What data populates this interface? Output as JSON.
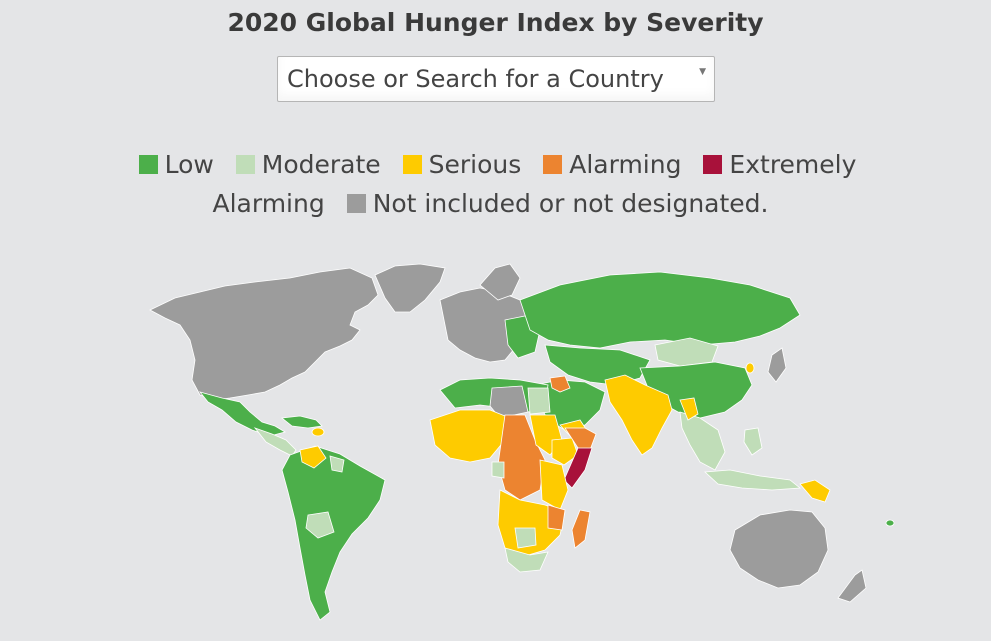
{
  "title": "2020 Global Hunger Index by Severity",
  "country_select": {
    "placeholder": "Choose or Search for a Country"
  },
  "legend": [
    {
      "label": "Low",
      "color": "#4caf4a"
    },
    {
      "label": "Moderate",
      "color": "#c0ddb8"
    },
    {
      "label": "Serious",
      "color": "#fecb00"
    },
    {
      "label": "Alarming",
      "color": "#ec8430"
    },
    {
      "label": "Extremely Alarming",
      "color": "#a8113a"
    },
    {
      "label": "Not included or not designated.",
      "color": "#9c9c9c"
    }
  ],
  "icons": {
    "dropdown": "chevron-down-icon"
  }
}
